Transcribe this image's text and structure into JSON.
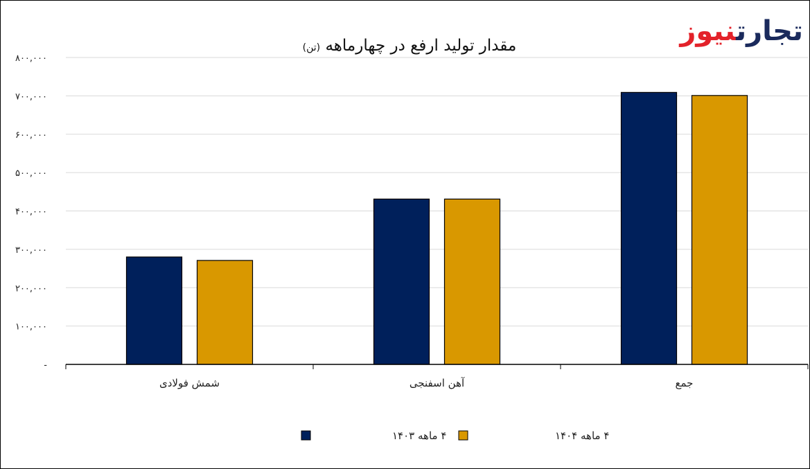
{
  "logo": {
    "word1": "تجارت",
    "word2": "نیوز"
  },
  "chart_data": {
    "type": "bar",
    "title": "مقدار تولید ارفع در چهارماهه",
    "unit": "(تن)",
    "categories": [
      "شمش فولادی",
      "آهن اسفنجی",
      "جمع"
    ],
    "series": [
      {
        "name": "۴ ماهه ۱۴۰۳",
        "color": "#00205b",
        "values": [
          280000,
          431000,
          709000
        ]
      },
      {
        "name": "۴ ماهه ۱۴۰۴",
        "color": "#d99800",
        "values": [
          271000,
          431000,
          701000
        ]
      }
    ],
    "ylim": [
      0,
      800000
    ],
    "yticks": [
      {
        "value": 0,
        "label": "-"
      },
      {
        "value": 100000,
        "label": "۱۰۰,۰۰۰"
      },
      {
        "value": 200000,
        "label": "۲۰۰,۰۰۰"
      },
      {
        "value": 300000,
        "label": "۳۰۰,۰۰۰"
      },
      {
        "value": 400000,
        "label": "۴۰۰,۰۰۰"
      },
      {
        "value": 500000,
        "label": "۵۰۰,۰۰۰"
      },
      {
        "value": 600000,
        "label": "۶۰۰,۰۰۰"
      },
      {
        "value": 700000,
        "label": "۷۰۰,۰۰۰"
      },
      {
        "value": 800000,
        "label": "۸۰۰,۰۰۰"
      }
    ],
    "grid": true,
    "legend": "bottom"
  }
}
